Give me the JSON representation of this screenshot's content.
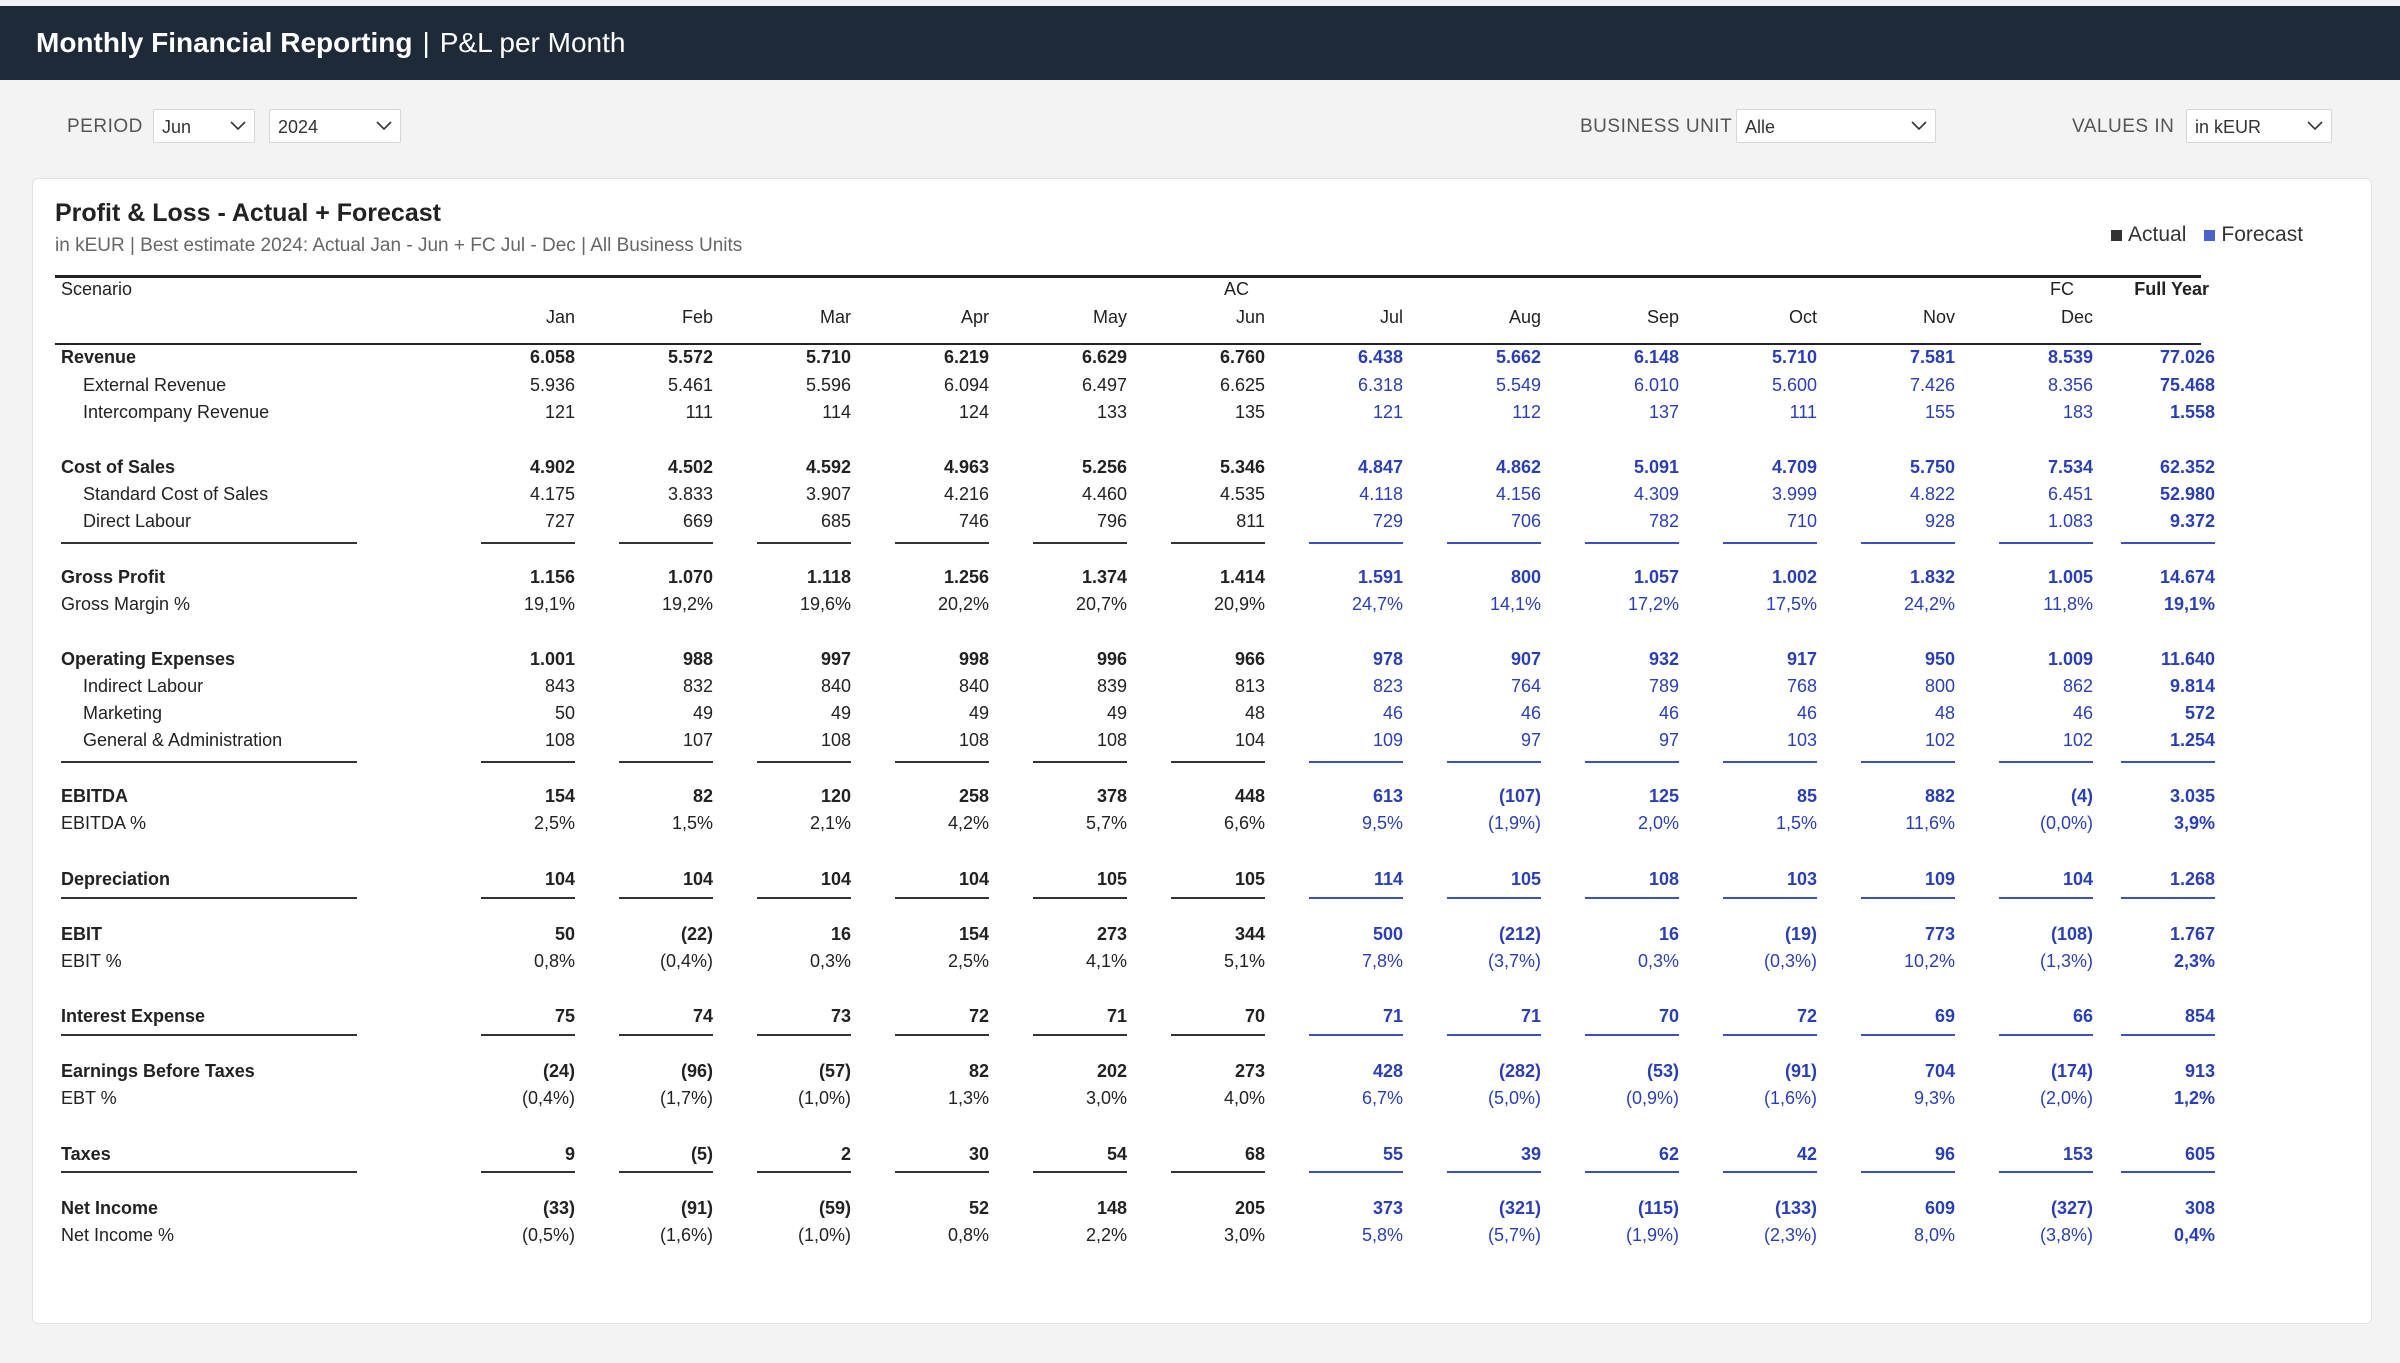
{
  "header": {
    "title": "Monthly Financial Reporting",
    "separator": "|",
    "subtitle": "P&L per Month"
  },
  "filters": {
    "period_label": "PERIOD",
    "period_month": "Jun",
    "period_year": "2024",
    "business_unit_label": "BUSINESS UNIT",
    "business_unit_value": "Alle",
    "values_in_label": "VALUES IN",
    "values_in_value": "in kEUR"
  },
  "report": {
    "title": "Profit & Loss - Actual + Forecast",
    "subtitle": "in kEUR | Best estimate 2024: Actual Jan - Jun + FC Jul - Dec | All Business Units",
    "legend": [
      {
        "label": "Actual",
        "color": "#333333"
      },
      {
        "label": "Forecast",
        "color": "#4a63c8"
      }
    ],
    "scenario_label": "Scenario",
    "ac_label": "AC",
    "fc_label": "FC",
    "months": [
      "Jan",
      "Feb",
      "Mar",
      "Apr",
      "May",
      "Jun",
      "Jul",
      "Aug",
      "Sep",
      "Oct",
      "Nov",
      "Dec"
    ],
    "full_year_label": "Full Year",
    "colors": {
      "actual": "#222222",
      "forecast": "#2a3fb5"
    },
    "rows": [
      {
        "label": "Revenue",
        "bold": true,
        "indent": false,
        "values": [
          "6.058",
          "5.572",
          "5.710",
          "6.219",
          "6.629",
          "6.760",
          "6.438",
          "5.662",
          "6.148",
          "5.710",
          "7.581",
          "8.539"
        ],
        "total": "77.026"
      },
      {
        "label": "External Revenue",
        "bold": false,
        "indent": true,
        "values": [
          "5.936",
          "5.461",
          "5.596",
          "6.094",
          "6.497",
          "6.625",
          "6.318",
          "5.549",
          "6.010",
          "5.600",
          "7.426",
          "8.356"
        ],
        "total": "75.468"
      },
      {
        "label": "Intercompany Revenue",
        "bold": false,
        "indent": true,
        "values": [
          "121",
          "111",
          "114",
          "124",
          "133",
          "135",
          "121",
          "112",
          "137",
          "111",
          "155",
          "183"
        ],
        "total": "1.558"
      },
      {
        "label": "Cost of Sales",
        "bold": true,
        "indent": false,
        "values": [
          "4.902",
          "4.502",
          "4.592",
          "4.963",
          "5.256",
          "5.346",
          "4.847",
          "4.862",
          "5.091",
          "4.709",
          "5.750",
          "7.534"
        ],
        "total": "62.352"
      },
      {
        "label": "Standard Cost of Sales",
        "bold": false,
        "indent": true,
        "values": [
          "4.175",
          "3.833",
          "3.907",
          "4.216",
          "4.460",
          "4.535",
          "4.118",
          "4.156",
          "4.309",
          "3.999",
          "4.822",
          "6.451"
        ],
        "total": "52.980"
      },
      {
        "label": "Direct Labour",
        "bold": false,
        "indent": true,
        "values": [
          "727",
          "669",
          "685",
          "746",
          "796",
          "811",
          "729",
          "706",
          "782",
          "710",
          "928",
          "1.083"
        ],
        "total": "9.372"
      },
      {
        "label": "Gross Profit",
        "bold": true,
        "indent": false,
        "values": [
          "1.156",
          "1.070",
          "1.118",
          "1.256",
          "1.374",
          "1.414",
          "1.591",
          "800",
          "1.057",
          "1.002",
          "1.832",
          "1.005"
        ],
        "total": "14.674"
      },
      {
        "label": "Gross Margin %",
        "bold": false,
        "indent": false,
        "values": [
          "19,1%",
          "19,2%",
          "19,6%",
          "20,2%",
          "20,7%",
          "20,9%",
          "24,7%",
          "14,1%",
          "17,2%",
          "17,5%",
          "24,2%",
          "11,8%"
        ],
        "total": "19,1%"
      },
      {
        "label": "Operating Expenses",
        "bold": true,
        "indent": false,
        "values": [
          "1.001",
          "988",
          "997",
          "998",
          "996",
          "966",
          "978",
          "907",
          "932",
          "917",
          "950",
          "1.009"
        ],
        "total": "11.640"
      },
      {
        "label": "Indirect Labour",
        "bold": false,
        "indent": true,
        "values": [
          "843",
          "832",
          "840",
          "840",
          "839",
          "813",
          "823",
          "764",
          "789",
          "768",
          "800",
          "862"
        ],
        "total": "9.814"
      },
      {
        "label": "Marketing",
        "bold": false,
        "indent": true,
        "values": [
          "50",
          "49",
          "49",
          "49",
          "49",
          "48",
          "46",
          "46",
          "46",
          "46",
          "48",
          "46"
        ],
        "total": "572"
      },
      {
        "label": "General & Administration",
        "bold": false,
        "indent": true,
        "values": [
          "108",
          "107",
          "108",
          "108",
          "108",
          "104",
          "109",
          "97",
          "97",
          "103",
          "102",
          "102"
        ],
        "total": "1.254"
      },
      {
        "label": "EBITDA",
        "bold": true,
        "indent": false,
        "values": [
          "154",
          "82",
          "120",
          "258",
          "378",
          "448",
          "613",
          "(107)",
          "125",
          "85",
          "882",
          "(4)"
        ],
        "total": "3.035"
      },
      {
        "label": "EBITDA %",
        "bold": false,
        "indent": false,
        "values": [
          "2,5%",
          "1,5%",
          "2,1%",
          "4,2%",
          "5,7%",
          "6,6%",
          "9,5%",
          "(1,9%)",
          "2,0%",
          "1,5%",
          "11,6%",
          "(0,0%)"
        ],
        "total": "3,9%"
      },
      {
        "label": "Depreciation",
        "bold": true,
        "indent": false,
        "values": [
          "104",
          "104",
          "104",
          "104",
          "105",
          "105",
          "114",
          "105",
          "108",
          "103",
          "109",
          "104"
        ],
        "total": "1.268"
      },
      {
        "label": "EBIT",
        "bold": true,
        "indent": false,
        "values": [
          "50",
          "(22)",
          "16",
          "154",
          "273",
          "344",
          "500",
          "(212)",
          "16",
          "(19)",
          "773",
          "(108)"
        ],
        "total": "1.767"
      },
      {
        "label": "EBIT %",
        "bold": false,
        "indent": false,
        "values": [
          "0,8%",
          "(0,4%)",
          "0,3%",
          "2,5%",
          "4,1%",
          "5,1%",
          "7,8%",
          "(3,7%)",
          "0,3%",
          "(0,3%)",
          "10,2%",
          "(1,3%)"
        ],
        "total": "2,3%"
      },
      {
        "label": "Interest Expense",
        "bold": true,
        "indent": false,
        "values": [
          "75",
          "74",
          "73",
          "72",
          "71",
          "70",
          "71",
          "71",
          "70",
          "72",
          "69",
          "66"
        ],
        "total": "854"
      },
      {
        "label": "Earnings Before Taxes",
        "bold": true,
        "indent": false,
        "values": [
          "(24)",
          "(96)",
          "(57)",
          "82",
          "202",
          "273",
          "428",
          "(282)",
          "(53)",
          "(91)",
          "704",
          "(174)"
        ],
        "total": "913"
      },
      {
        "label": "EBT %",
        "bold": false,
        "indent": false,
        "values": [
          "(0,4%)",
          "(1,7%)",
          "(1,0%)",
          "1,3%",
          "3,0%",
          "4,0%",
          "6,7%",
          "(5,0%)",
          "(0,9%)",
          "(1,6%)",
          "9,3%",
          "(2,0%)"
        ],
        "total": "1,2%"
      },
      {
        "label": "Taxes",
        "bold": true,
        "indent": false,
        "values": [
          "9",
          "(5)",
          "2",
          "30",
          "54",
          "68",
          "55",
          "39",
          "62",
          "42",
          "96",
          "153"
        ],
        "total": "605"
      },
      {
        "label": "Net Income",
        "bold": true,
        "indent": false,
        "values": [
          "(33)",
          "(91)",
          "(59)",
          "52",
          "148",
          "205",
          "373",
          "(321)",
          "(115)",
          "(133)",
          "609",
          "(327)"
        ],
        "total": "308"
      },
      {
        "label": "Net Income %",
        "bold": false,
        "indent": false,
        "values": [
          "(0,5%)",
          "(1,6%)",
          "(1,0%)",
          "0,8%",
          "2,2%",
          "3,0%",
          "5,8%",
          "(5,7%)",
          "(1,9%)",
          "(2,3%)",
          "8,0%",
          "(3,8%)"
        ],
        "total": "0,4%"
      }
    ]
  }
}
